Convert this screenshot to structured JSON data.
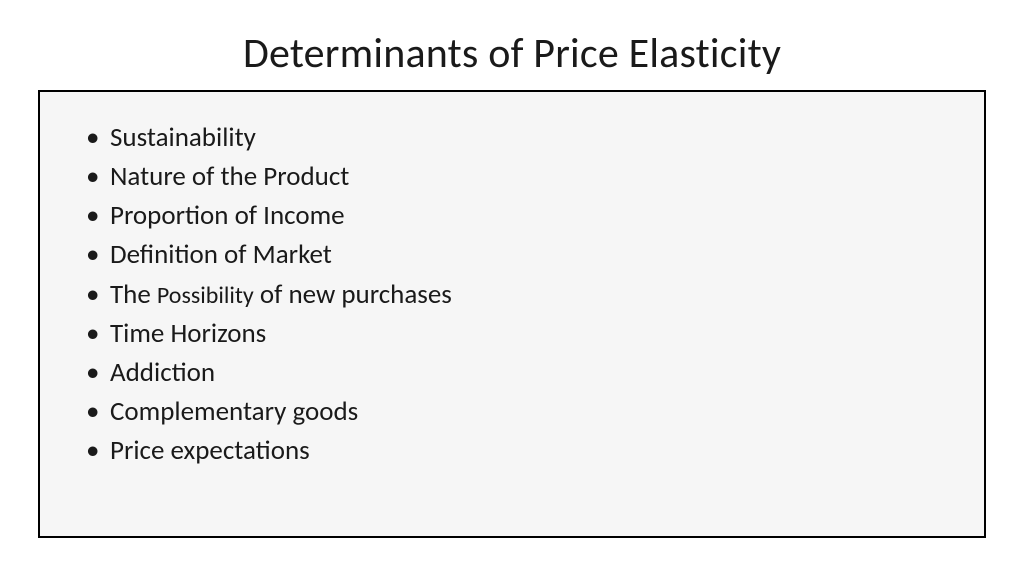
{
  "slide": {
    "title": "Determinants of Price Elasticity",
    "background_color": "#ffffff",
    "title_color": "#1a1a1a",
    "title_fontsize": 42,
    "box": {
      "border_color": "#000000",
      "background_color": "#f6f6f6",
      "border_width": 2
    },
    "bullets": [
      "Sustainability",
      "Nature of the Product",
      "Proportion of Income",
      "Definition of Market",
      "The Possibility of new purchases",
      "Time Horizons",
      "Addiction",
      "Complementary goods",
      "Price expectations"
    ],
    "bullet_fontsize": 27,
    "bullet_color": "#1a1a1a",
    "mixed_size_item_index": 4,
    "mixed_size_item_parts": {
      "prefix": "The ",
      "small": "Possibility",
      "suffix": " of new purchases"
    }
  }
}
